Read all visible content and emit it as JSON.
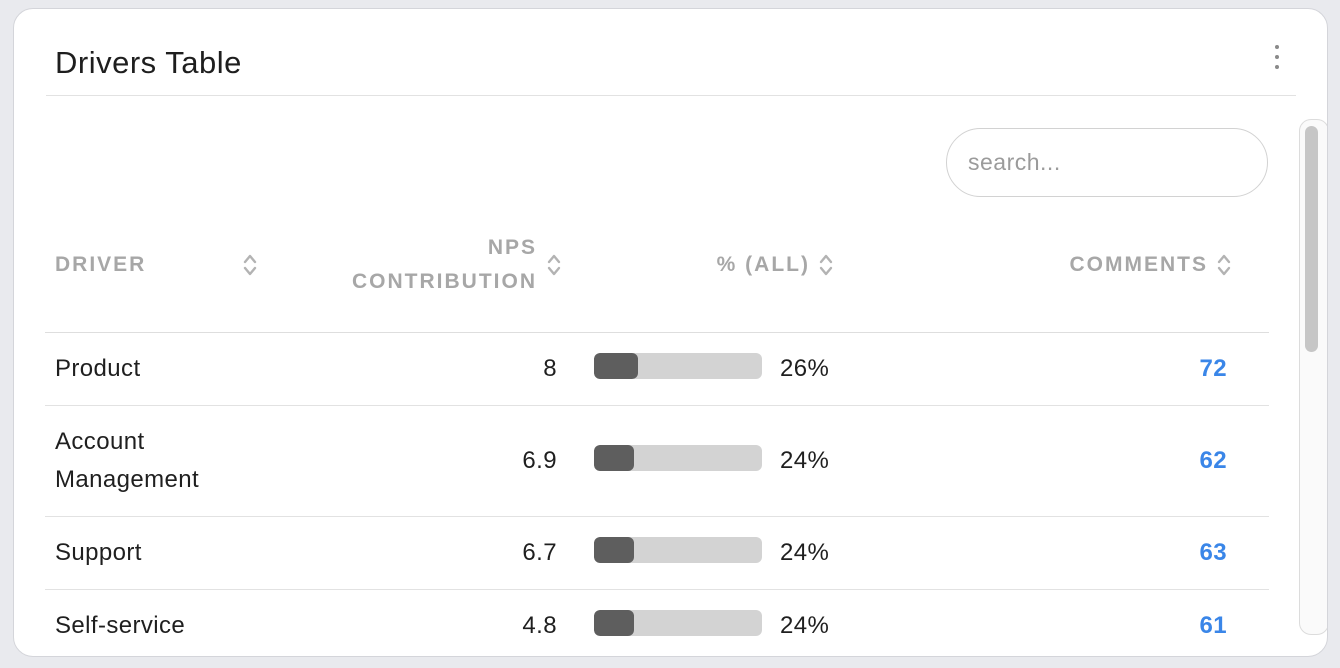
{
  "widget": {
    "title": "Drivers Table",
    "menu_icon": "kebab-vertical-icon"
  },
  "search": {
    "placeholder": "search...",
    "value": ""
  },
  "table": {
    "columns": {
      "driver": "DRIVER",
      "nps_line1": "NPS",
      "nps_line2": "CONTRIBUTION",
      "pct": "% (ALL)",
      "comments": "COMMENTS"
    },
    "rows": [
      {
        "driver_line1": "Product",
        "driver_line2": "",
        "nps": "8",
        "pct_label": "26%",
        "pct_value": 26,
        "comments": "72"
      },
      {
        "driver_line1": "Account",
        "driver_line2": "Management",
        "nps": "6.9",
        "pct_label": "24%",
        "pct_value": 24,
        "comments": "62"
      },
      {
        "driver_line1": "Support",
        "driver_line2": "",
        "nps": "6.7",
        "pct_label": "24%",
        "pct_value": 24,
        "comments": "63"
      },
      {
        "driver_line1": "Self-service",
        "driver_line2": "",
        "nps": "4.8",
        "pct_label": "24%",
        "pct_value": 24,
        "comments": "61"
      }
    ]
  },
  "colors": {
    "bar_fill": "#5e5e5e",
    "bar_track": "#d3d3d3",
    "link": "#3a86e8",
    "header_text": "#a7a7a7"
  }
}
